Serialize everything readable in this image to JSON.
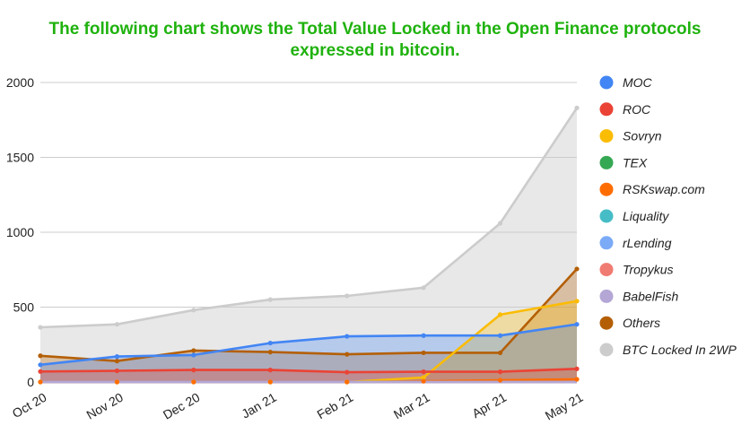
{
  "chart_data": {
    "type": "area",
    "title_lines": [
      "The following chart shows the Total Value Locked in the Open Finance protocols",
      "expressed in bitcoin."
    ],
    "title_color": "#1fb20e",
    "xlabel": "",
    "ylabel": "",
    "categories": [
      "Oct 20",
      "Nov 20",
      "Dec 20",
      "Jan 21",
      "Feb 21",
      "Mar 21",
      "Apr 21",
      "May 21"
    ],
    "ylim": [
      0,
      2000
    ],
    "yticks": [
      0,
      500,
      1000,
      1500,
      2000
    ],
    "grid": true,
    "legend_position": "right",
    "series": [
      {
        "name": "MOC",
        "color": "#4285f4",
        "values": [
          115,
          170,
          180,
          260,
          305,
          310,
          310,
          385
        ]
      },
      {
        "name": "ROC",
        "color": "#ea4335",
        "values": [
          70,
          75,
          80,
          80,
          65,
          68,
          68,
          88
        ]
      },
      {
        "name": "Sovryn",
        "color": "#fbbc04",
        "values": [
          0,
          0,
          0,
          0,
          0,
          30,
          450,
          540
        ]
      },
      {
        "name": "TEX",
        "color": "#34a853",
        "values": [
          0,
          0,
          0,
          0,
          0,
          0,
          0,
          0
        ]
      },
      {
        "name": "RSKswap.com",
        "color": "#ff6d01",
        "values": [
          0,
          0,
          0,
          0,
          0,
          5,
          12,
          18
        ]
      },
      {
        "name": "Liquality",
        "color": "#46bdc6",
        "values": [
          0,
          0,
          0,
          0,
          0,
          0,
          0,
          0
        ]
      },
      {
        "name": "rLending",
        "color": "#7baaf7",
        "values": [
          0,
          0,
          0,
          0,
          0,
          0,
          0,
          0
        ]
      },
      {
        "name": "Tropykus",
        "color": "#f07b72",
        "values": [
          0,
          0,
          0,
          0,
          0,
          0,
          0,
          0
        ]
      },
      {
        "name": "BabelFish",
        "color": "#b4a7d6",
        "values": [
          0,
          0,
          0,
          0,
          0,
          0,
          0,
          0
        ]
      },
      {
        "name": "Others",
        "color": "#b45f06",
        "values": [
          175,
          140,
          210,
          200,
          185,
          195,
          195,
          755
        ]
      },
      {
        "name": "BTC Locked In 2WP",
        "color": "#cccccc",
        "values": [
          365,
          385,
          480,
          550,
          575,
          630,
          1060,
          1830
        ]
      }
    ]
  }
}
